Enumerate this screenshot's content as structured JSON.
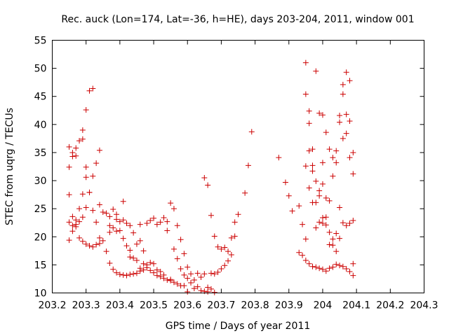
{
  "chart_data": {
    "type": "scatter",
    "title": "Rec. auck (Lon=174, Lat=-36, h=HE), days 203-204, 2011, window 001",
    "xlabel": "GPS time / Days of year 2011",
    "ylabel": "STEC from uqrg / TECUs",
    "xlim": [
      203.2,
      204.3
    ],
    "ylim": [
      10,
      55
    ],
    "xticks": [
      203.2,
      203.3,
      203.4,
      203.5,
      203.6,
      203.7,
      203.8,
      203.9,
      204.0,
      204.1,
      204.2,
      204.3
    ],
    "xtick_labels": [
      "203.2",
      "203.3",
      "203.4",
      "203.5",
      "203.6",
      "203.7",
      "203.8",
      "203.9",
      "204",
      "204.1",
      "204.2",
      "204.3"
    ],
    "yticks": [
      10,
      15,
      20,
      25,
      30,
      35,
      40,
      45,
      50,
      55
    ],
    "ytick_labels": [
      "10",
      "15",
      "20",
      "25",
      "30",
      "35",
      "40",
      "45",
      "50",
      "55"
    ],
    "grid": false,
    "marker": "+",
    "marker_color": "#cc0000",
    "series": [
      {
        "points": [
          [
            203.25,
            36
          ],
          [
            203.25,
            32.4
          ],
          [
            203.25,
            27.5
          ],
          [
            203.25,
            22.6
          ],
          [
            203.25,
            19.4
          ],
          [
            203.26,
            35
          ],
          [
            203.26,
            34.3
          ],
          [
            203.26,
            23.6
          ],
          [
            203.26,
            22
          ],
          [
            203.26,
            21
          ],
          [
            203.27,
            35.8
          ],
          [
            203.27,
            34.4
          ],
          [
            203.27,
            22.2
          ],
          [
            203.27,
            23
          ],
          [
            203.27,
            21.8
          ],
          [
            203.28,
            37.1
          ],
          [
            203.28,
            22.7
          ],
          [
            203.28,
            25
          ],
          [
            203.28,
            19.8
          ],
          [
            203.29,
            39
          ],
          [
            203.29,
            37.4
          ],
          [
            203.29,
            27.6
          ],
          [
            203.29,
            23.5
          ],
          [
            203.29,
            19.2
          ],
          [
            203.3,
            42.6
          ],
          [
            203.3,
            32.4
          ],
          [
            203.3,
            30.6
          ],
          [
            203.3,
            25.2
          ],
          [
            203.3,
            18.7
          ],
          [
            203.31,
            46
          ],
          [
            203.31,
            27.9
          ],
          [
            203.31,
            27.9
          ],
          [
            203.31,
            18.4
          ],
          [
            203.32,
            46.4
          ],
          [
            203.32,
            30.8
          ],
          [
            203.32,
            24.7
          ],
          [
            203.32,
            18.2
          ],
          [
            203.33,
            33.1
          ],
          [
            203.33,
            22.6
          ],
          [
            203.33,
            18.6
          ],
          [
            203.34,
            35.4
          ],
          [
            203.34,
            25.7
          ],
          [
            203.34,
            19.8
          ],
          [
            203.34,
            18.8
          ],
          [
            203.35,
            24.4
          ],
          [
            203.35,
            19.3
          ],
          [
            203.36,
            24.2
          ],
          [
            203.36,
            17.4
          ],
          [
            203.37,
            23.6
          ],
          [
            203.37,
            22
          ],
          [
            203.37,
            20.8
          ],
          [
            203.37,
            15.3
          ],
          [
            203.38,
            24.9
          ],
          [
            203.38,
            21.6
          ],
          [
            203.38,
            14.2
          ],
          [
            203.39,
            24
          ],
          [
            203.39,
            23.1
          ],
          [
            203.39,
            21
          ],
          [
            203.39,
            13.6
          ],
          [
            203.4,
            22.7
          ],
          [
            203.4,
            21.1
          ],
          [
            203.4,
            13.3
          ],
          [
            203.41,
            26.3
          ],
          [
            203.41,
            23
          ],
          [
            203.41,
            19.7
          ],
          [
            203.41,
            13.2
          ],
          [
            203.42,
            22.4
          ],
          [
            203.42,
            18.4
          ],
          [
            203.42,
            13.1
          ],
          [
            203.43,
            22
          ],
          [
            203.43,
            17.6
          ],
          [
            203.43,
            16.4
          ],
          [
            203.43,
            13.3
          ],
          [
            203.44,
            20.7
          ],
          [
            203.44,
            16.2
          ],
          [
            203.44,
            13.4
          ],
          [
            203.45,
            18.7
          ],
          [
            203.45,
            15.8
          ],
          [
            203.45,
            13.5
          ],
          [
            203.46,
            22.2
          ],
          [
            203.46,
            19.3
          ],
          [
            203.46,
            14.4
          ],
          [
            203.46,
            13.9
          ],
          [
            203.47,
            17.5
          ],
          [
            203.47,
            15.2
          ],
          [
            203.47,
            14.1
          ],
          [
            203.48,
            22.4
          ],
          [
            203.48,
            15
          ],
          [
            203.48,
            14.5
          ],
          [
            203.49,
            22.9
          ],
          [
            203.49,
            15.4
          ],
          [
            203.49,
            14
          ],
          [
            203.5,
            23.3
          ],
          [
            203.5,
            15.2
          ],
          [
            203.5,
            13.6
          ],
          [
            203.51,
            22.2
          ],
          [
            203.51,
            14.1
          ],
          [
            203.51,
            13.1
          ],
          [
            203.52,
            22.6
          ],
          [
            203.52,
            13.8
          ],
          [
            203.52,
            12.9
          ],
          [
            203.53,
            23.4
          ],
          [
            203.53,
            13.2
          ],
          [
            203.53,
            12.6
          ],
          [
            203.54,
            22.7
          ],
          [
            203.54,
            21.1
          ],
          [
            203.54,
            12.3
          ],
          [
            203.55,
            26
          ],
          [
            203.55,
            12.2
          ],
          [
            203.55,
            12.4
          ],
          [
            203.56,
            25
          ],
          [
            203.56,
            17.8
          ],
          [
            203.56,
            11.9
          ],
          [
            203.57,
            22
          ],
          [
            203.57,
            16.1
          ],
          [
            203.57,
            11.6
          ],
          [
            203.58,
            19.5
          ],
          [
            203.58,
            11.3
          ],
          [
            203.58,
            14.3
          ],
          [
            203.59,
            17
          ],
          [
            203.59,
            13.2
          ],
          [
            203.59,
            11.3
          ],
          [
            203.6,
            14.6
          ],
          [
            203.6,
            10.2
          ],
          [
            203.6,
            12.6
          ],
          [
            203.61,
            13.4
          ],
          [
            203.61,
            11.8
          ],
          [
            203.62,
            12.3
          ],
          [
            203.62,
            10.8
          ],
          [
            203.63,
            13.5
          ],
          [
            203.63,
            11.1
          ],
          [
            203.64,
            12.8
          ],
          [
            203.64,
            10.4
          ],
          [
            203.65,
            30.5
          ],
          [
            203.65,
            13.4
          ],
          [
            203.65,
            10.3
          ],
          [
            203.66,
            29.2
          ],
          [
            203.66,
            11
          ],
          [
            203.66,
            10.2
          ],
          [
            203.67,
            23.8
          ],
          [
            203.67,
            13.5
          ],
          [
            203.67,
            10.7
          ],
          [
            203.68,
            20.1
          ],
          [
            203.68,
            13.4
          ],
          [
            203.68,
            10.1
          ],
          [
            203.69,
            18.2
          ],
          [
            203.69,
            13.7
          ],
          [
            203.7,
            17.8
          ],
          [
            203.7,
            14.3
          ],
          [
            203.71,
            18.1
          ],
          [
            203.71,
            14.9
          ],
          [
            203.72,
            17.4
          ],
          [
            203.72,
            15.7
          ],
          [
            203.73,
            19.8
          ],
          [
            203.73,
            16.8
          ],
          [
            203.74,
            22.6
          ],
          [
            203.74,
            20.1
          ],
          [
            203.75,
            24
          ],
          [
            203.77,
            27.8
          ],
          [
            203.78,
            32.7
          ],
          [
            203.79,
            38.7
          ],
          [
            203.87,
            34.1
          ],
          [
            203.89,
            29.7
          ],
          [
            203.9,
            27.3
          ],
          [
            203.91,
            24.6
          ],
          [
            203.93,
            25.5
          ],
          [
            203.93,
            17.2
          ],
          [
            203.94,
            22.2
          ],
          [
            203.94,
            16.7
          ],
          [
            203.95,
            51
          ],
          [
            203.95,
            45.4
          ],
          [
            203.95,
            32.6
          ],
          [
            203.95,
            19.6
          ],
          [
            203.95,
            15.8
          ],
          [
            203.96,
            42.4
          ],
          [
            203.96,
            40.2
          ],
          [
            203.96,
            35.3
          ],
          [
            203.96,
            28.7
          ],
          [
            203.96,
            15.2
          ],
          [
            203.97,
            35.6
          ],
          [
            203.97,
            32.7
          ],
          [
            203.97,
            31.7
          ],
          [
            203.97,
            26.1
          ],
          [
            203.97,
            14.7
          ],
          [
            203.98,
            49.5
          ],
          [
            203.98,
            29.9
          ],
          [
            203.98,
            26.1
          ],
          [
            203.98,
            21.6
          ],
          [
            203.98,
            14.6
          ],
          [
            203.99,
            42
          ],
          [
            203.99,
            28.2
          ],
          [
            203.99,
            27.3
          ],
          [
            203.99,
            22.6
          ],
          [
            203.99,
            14.4
          ],
          [
            204.0,
            41.7
          ],
          [
            204.0,
            33.2
          ],
          [
            204.0,
            29.4
          ],
          [
            204.0,
            23.4
          ],
          [
            204.0,
            22.4
          ],
          [
            204.0,
            14.2
          ],
          [
            204.01,
            38.6
          ],
          [
            204.01,
            26.9
          ],
          [
            204.01,
            23.5
          ],
          [
            204.01,
            22.1
          ],
          [
            204.01,
            13.9
          ],
          [
            204.02,
            35.6
          ],
          [
            204.02,
            26.4
          ],
          [
            204.02,
            20.8
          ],
          [
            204.02,
            18.6
          ],
          [
            204.02,
            14.4
          ],
          [
            204.03,
            34.1
          ],
          [
            204.03,
            30.8
          ],
          [
            204.03,
            19.6
          ],
          [
            204.03,
            18.5
          ],
          [
            204.03,
            14.6
          ],
          [
            204.04,
            35.3
          ],
          [
            204.04,
            33.2
          ],
          [
            204.04,
            20.6
          ],
          [
            204.04,
            17.4
          ],
          [
            204.04,
            15.1
          ],
          [
            204.05,
            41.6
          ],
          [
            204.05,
            40.4
          ],
          [
            204.05,
            25.2
          ],
          [
            204.05,
            19.7
          ],
          [
            204.05,
            14.9
          ],
          [
            204.06,
            47.1
          ],
          [
            204.06,
            45.4
          ],
          [
            204.06,
            37.5
          ],
          [
            204.06,
            22.5
          ],
          [
            204.06,
            14.7
          ],
          [
            204.07,
            49.3
          ],
          [
            204.07,
            41.8
          ],
          [
            204.07,
            38.4
          ],
          [
            204.07,
            22
          ],
          [
            204.07,
            14.3
          ],
          [
            204.08,
            47.8
          ],
          [
            204.08,
            40.6
          ],
          [
            204.08,
            34.1
          ],
          [
            204.08,
            22.4
          ],
          [
            204.08,
            13.8
          ],
          [
            204.09,
            35
          ],
          [
            204.09,
            31.2
          ],
          [
            204.09,
            22.9
          ],
          [
            204.09,
            15.2
          ],
          [
            204.09,
            13.1
          ]
        ]
      }
    ]
  }
}
